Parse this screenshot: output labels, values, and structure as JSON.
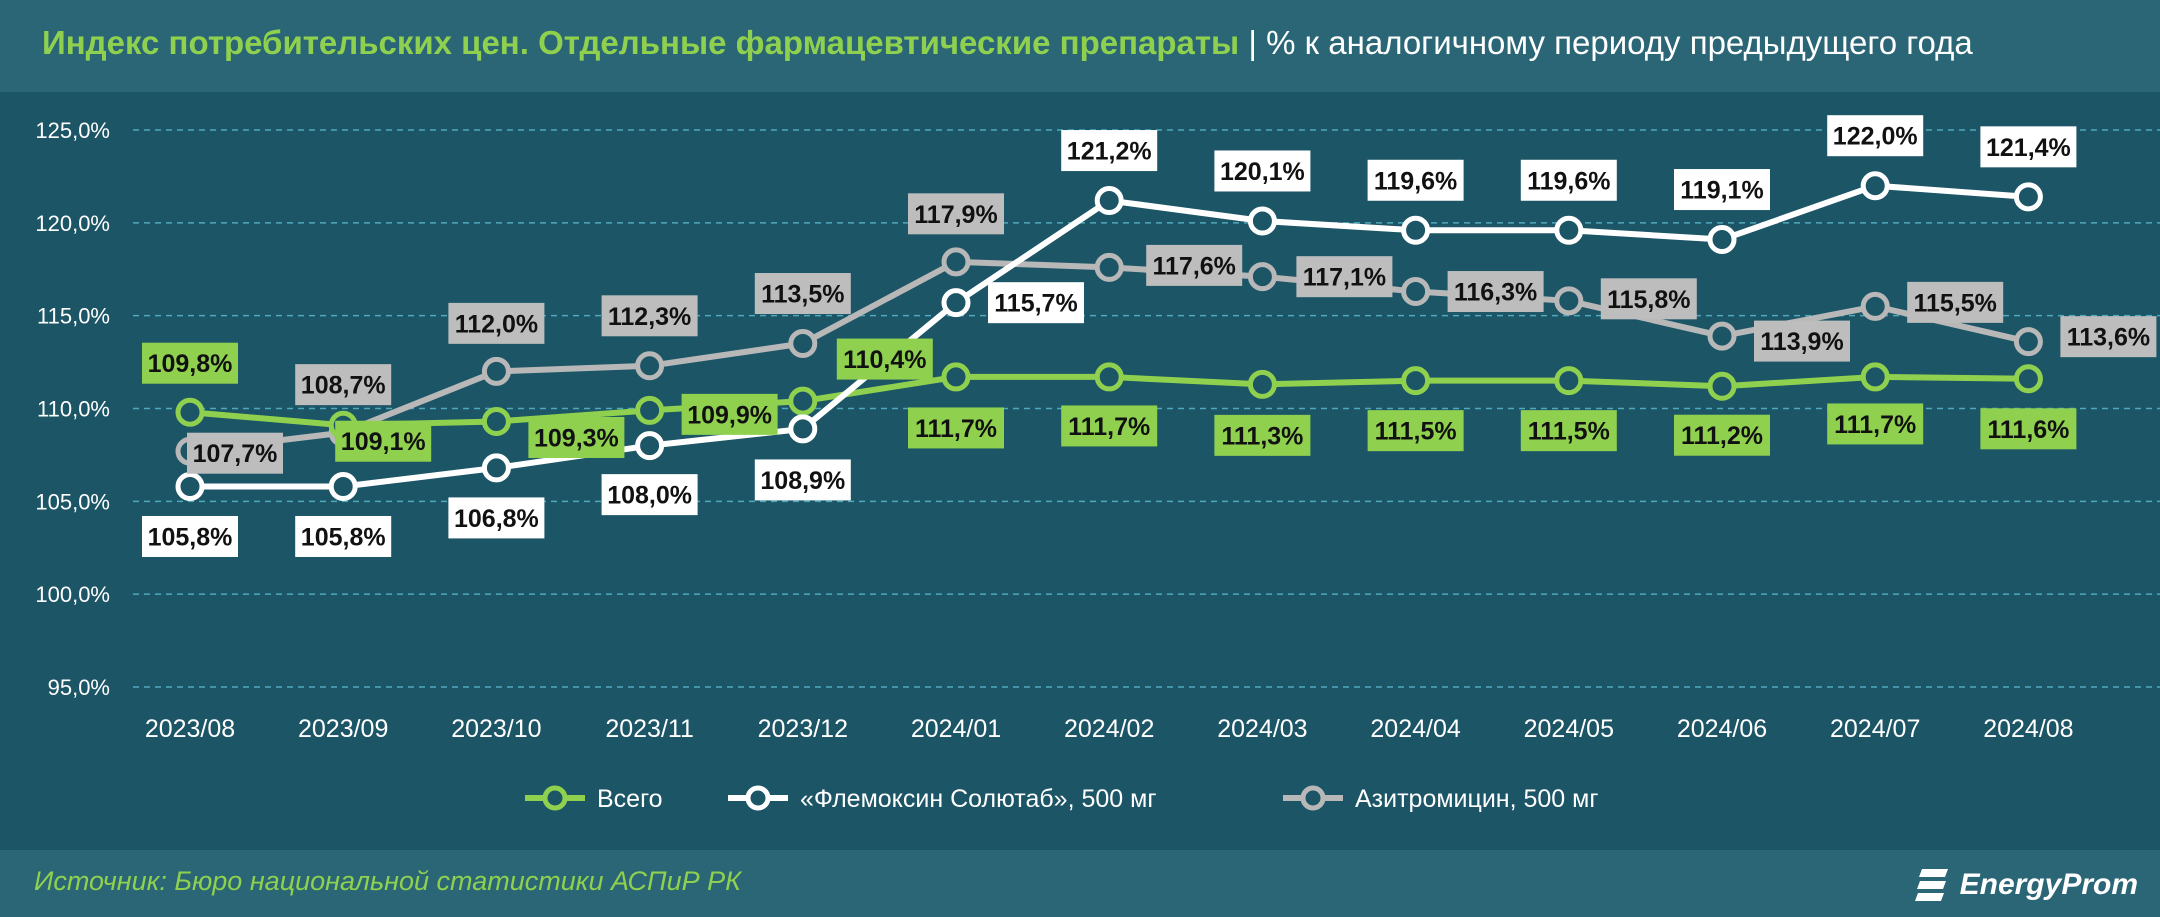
{
  "header": {
    "title_main": "Индекс потребительских цен. Отдельные фармацевтические препараты",
    "title_sep": " | ",
    "title_unit": "% к аналогичному периоду предыдущего года"
  },
  "footer": {
    "source": "Источник: Бюро национальной статистики АСПиР РК",
    "brand": "EnergyProm"
  },
  "colors": {
    "background": "#1c5566",
    "header_bg": "#2b6676",
    "accent_green": "#8fd14f",
    "series_total": "#8fd14f",
    "series_flemoxin": "#ffffff",
    "series_azitro": "#b8b8b8",
    "grid": "#4fa9bd"
  },
  "chart_data": {
    "type": "line",
    "categories": [
      "2023/08",
      "2023/09",
      "2023/10",
      "2023/11",
      "2023/12",
      "2024/01",
      "2024/02",
      "2024/03",
      "2024/04",
      "2024/05",
      "2024/06",
      "2024/07",
      "2024/08"
    ],
    "ylim": [
      95,
      125
    ],
    "yticks": [
      95,
      100,
      105,
      110,
      115,
      120,
      125
    ],
    "ytick_labels": [
      "95,0%",
      "100,0%",
      "105,0%",
      "110,0%",
      "115,0%",
      "120,0%",
      "125,0%"
    ],
    "grid": true,
    "legend_position": "bottom",
    "series": [
      {
        "name": "Всего",
        "color": "#8fd14f",
        "values": [
          109.8,
          109.1,
          109.3,
          109.9,
          110.4,
          111.7,
          111.7,
          111.3,
          111.5,
          111.5,
          111.2,
          111.7,
          111.6
        ],
        "labels": [
          "109,8%",
          "109,1%",
          "109,3%",
          "109,9%",
          "110,4%",
          "111,7%",
          "111,7%",
          "111,3%",
          "111,5%",
          "111,5%",
          "111,2%",
          "111,7%",
          "111,6%"
        ]
      },
      {
        "name": "«Флемоксин Солютаб», 500 мг",
        "color": "#ffffff",
        "values": [
          105.8,
          105.8,
          106.8,
          108.0,
          108.9,
          115.7,
          121.2,
          120.1,
          119.6,
          119.6,
          119.1,
          122.0,
          121.4
        ],
        "labels": [
          "105,8%",
          "105,8%",
          "106,8%",
          "108,0%",
          "108,9%",
          "115,7%",
          "121,2%",
          "120,1%",
          "119,6%",
          "119,6%",
          "119,1%",
          "122,0%",
          "121,4%"
        ]
      },
      {
        "name": "Азитромицин, 500 мг",
        "color": "#b8b8b8",
        "values": [
          107.7,
          108.7,
          112.0,
          112.3,
          113.5,
          117.9,
          117.6,
          117.1,
          116.3,
          115.8,
          113.9,
          115.5,
          113.6
        ],
        "labels": [
          "107,7%",
          "108,7%",
          "112,0%",
          "112,3%",
          "113,5%",
          "117,9%",
          "117,6%",
          "117,1%",
          "116,3%",
          "115,8%",
          "113,9%",
          "115,5%",
          "113,6%"
        ]
      }
    ]
  }
}
